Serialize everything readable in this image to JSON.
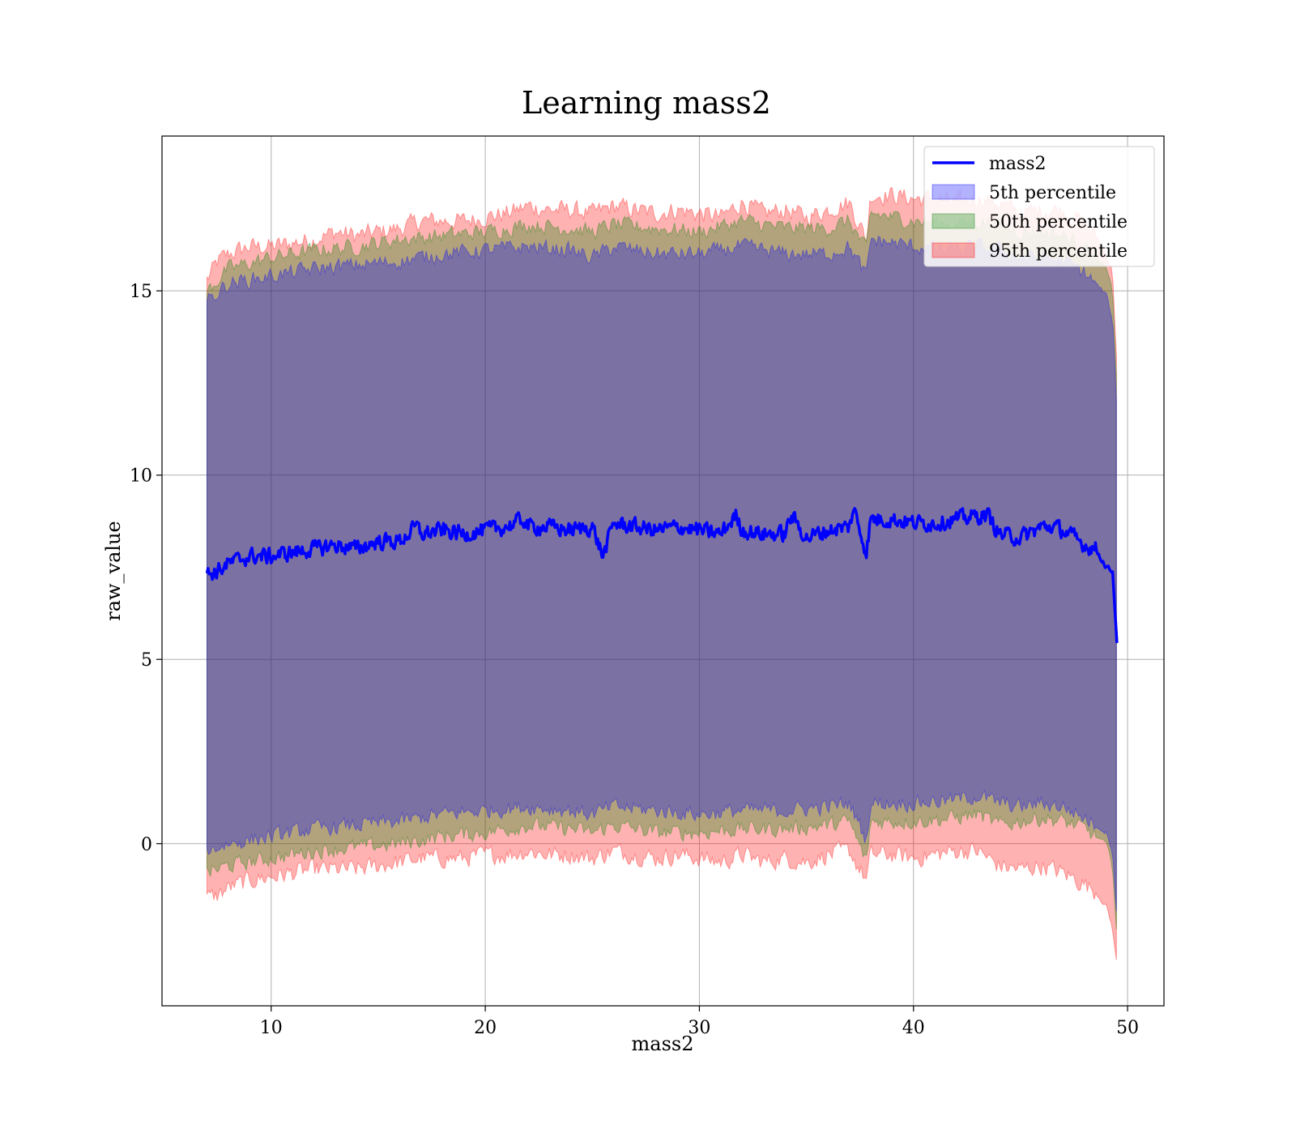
{
  "chart_data": {
    "type": "area",
    "title": "Learning mass2",
    "xlabel": "mass2",
    "ylabel": "raw_value",
    "xlim": [
      4.9,
      51.7
    ],
    "ylim": [
      -4.4,
      19.2
    ],
    "x_ticks": [
      10,
      20,
      30,
      40,
      50
    ],
    "y_ticks": [
      0,
      5,
      10,
      15
    ],
    "grid": true,
    "legend_position": "top-right",
    "colors": {
      "line": "#0000ff",
      "band_5th": "#0000ff",
      "band_50th": "#008000",
      "band_95th": "#ff0000",
      "band_overlap": "#a07077",
      "grid": "#b0b0b0",
      "axes": "#000000"
    },
    "legend": [
      {
        "label": "mass2",
        "kind": "line",
        "color": "#0000ff"
      },
      {
        "label": "5th percentile",
        "kind": "band",
        "color": "#0000ff"
      },
      {
        "label": "50th percentile",
        "kind": "band",
        "color": "#008000"
      },
      {
        "label": "95th percentile",
        "kind": "band",
        "color": "#ff0000"
      }
    ],
    "series": [
      {
        "name": "mass2",
        "x": [
          7.0,
          7.5,
          8.0,
          9.0,
          10.0,
          11.0,
          12.0,
          13.0,
          14.0,
          15.0,
          16.0,
          16.8,
          17.0,
          18.0,
          19.0,
          20.0,
          21.0,
          21.8,
          22.0,
          23.0,
          24.0,
          25.0,
          25.5,
          26.0,
          27.0,
          28.0,
          29.0,
          30.0,
          31.0,
          31.7,
          32.0,
          33.0,
          34.0,
          34.3,
          35.0,
          36.0,
          37.0,
          37.2,
          37.8,
          38.0,
          39.0,
          40.0,
          41.0,
          42.0,
          43.0,
          43.5,
          44.0,
          45.0,
          46.0,
          46.5,
          47.0,
          48.0,
          48.5,
          49.0,
          49.3,
          49.5
        ],
        "y": [
          7.3,
          7.4,
          7.6,
          7.8,
          7.8,
          7.9,
          8.0,
          8.1,
          8.0,
          8.2,
          8.2,
          8.6,
          8.4,
          8.5,
          8.4,
          8.5,
          8.6,
          8.8,
          8.6,
          8.6,
          8.5,
          8.6,
          7.8,
          8.7,
          8.6,
          8.5,
          8.6,
          8.5,
          8.4,
          8.9,
          8.5,
          8.4,
          8.4,
          8.9,
          8.3,
          8.5,
          8.6,
          9.1,
          7.9,
          8.8,
          8.8,
          8.7,
          8.7,
          8.8,
          8.9,
          8.9,
          8.4,
          8.3,
          8.6,
          8.6,
          8.5,
          8.1,
          8.0,
          7.5,
          7.4,
          5.5
        ]
      },
      {
        "name": "95th percentile",
        "x": [
          7.0,
          7.5,
          8.0,
          9.0,
          10.0,
          11.0,
          12.0,
          13.0,
          14.0,
          15.0,
          16.0,
          17.0,
          18.0,
          19.0,
          20.0,
          21.0,
          22.0,
          23.0,
          24.0,
          25.0,
          26.0,
          27.0,
          28.0,
          29.0,
          30.0,
          31.0,
          32.0,
          33.0,
          34.0,
          35.0,
          36.0,
          37.0,
          37.8,
          38.0,
          39.0,
          40.0,
          41.0,
          42.0,
          43.0,
          44.0,
          45.0,
          46.0,
          47.0,
          48.0,
          48.5,
          49.0,
          49.3,
          49.5
        ],
        "upper": [
          15.3,
          15.8,
          16.0,
          16.2,
          16.2,
          16.3,
          16.4,
          16.6,
          16.5,
          16.6,
          16.7,
          16.9,
          16.9,
          16.9,
          17.0,
          17.1,
          17.3,
          17.2,
          17.2,
          17.1,
          17.3,
          17.2,
          17.1,
          17.2,
          17.1,
          17.0,
          17.4,
          17.1,
          17.2,
          17.0,
          17.2,
          17.4,
          16.4,
          17.6,
          17.6,
          17.5,
          17.5,
          17.4,
          17.5,
          17.4,
          17.1,
          17.2,
          17.2,
          16.8,
          16.5,
          16.0,
          15.5,
          13.0
        ],
        "lower": [
          -1.5,
          -1.4,
          -1.2,
          -1.0,
          -0.9,
          -0.8,
          -0.7,
          -0.7,
          -0.7,
          -0.6,
          -0.5,
          -0.4,
          -0.4,
          -0.4,
          -0.3,
          -0.3,
          -0.2,
          -0.3,
          -0.3,
          -0.4,
          -0.2,
          -0.3,
          -0.4,
          -0.3,
          -0.4,
          -0.5,
          -0.3,
          -0.5,
          -0.4,
          -0.5,
          -0.3,
          -0.2,
          -1.0,
          -0.3,
          -0.3,
          -0.4,
          -0.3,
          -0.2,
          -0.2,
          -0.6,
          -0.7,
          -0.6,
          -0.8,
          -1.1,
          -1.3,
          -1.7,
          -2.3,
          -3.3
        ]
      },
      {
        "name": "50th percentile",
        "x": [
          7.0,
          8.0,
          10.0,
          12.0,
          14.0,
          16.0,
          18.0,
          20.0,
          22.0,
          24.0,
          25.0,
          26.0,
          28.0,
          30.0,
          32.0,
          34.0,
          36.0,
          37.0,
          37.8,
          38.0,
          40.0,
          42.0,
          43.0,
          44.0,
          45.0,
          46.0,
          47.0,
          48.0,
          49.0,
          49.3,
          49.5
        ],
        "upper": [
          15.0,
          15.6,
          15.9,
          16.1,
          16.2,
          16.4,
          16.5,
          16.6,
          16.8,
          16.7,
          16.6,
          16.8,
          16.7,
          16.6,
          16.9,
          16.7,
          16.7,
          16.9,
          16.1,
          17.1,
          16.9,
          16.8,
          16.9,
          16.8,
          16.6,
          16.6,
          16.5,
          16.2,
          15.6,
          15.0,
          12.5
        ],
        "lower": [
          -0.8,
          -0.6,
          -0.4,
          -0.2,
          -0.1,
          0.0,
          0.2,
          0.3,
          0.5,
          0.4,
          0.3,
          0.5,
          0.3,
          0.3,
          0.4,
          0.4,
          0.5,
          0.6,
          -0.5,
          0.6,
          0.6,
          0.7,
          0.8,
          0.5,
          0.6,
          0.7,
          0.6,
          0.4,
          0.0,
          -0.6,
          -2.5
        ]
      },
      {
        "name": "5th percentile",
        "x": [
          7.0,
          8.0,
          10.0,
          12.0,
          14.0,
          16.0,
          18.0,
          20.0,
          22.0,
          24.0,
          25.0,
          26.0,
          28.0,
          30.0,
          32.0,
          34.0,
          36.0,
          37.0,
          37.8,
          38.0,
          40.0,
          42.0,
          43.0,
          44.0,
          45.0,
          46.0,
          47.0,
          48.0,
          49.0,
          49.3,
          49.5
        ],
        "upper": [
          14.7,
          15.2,
          15.4,
          15.6,
          15.7,
          15.8,
          16.0,
          16.1,
          16.2,
          16.1,
          15.9,
          16.2,
          16.0,
          16.0,
          16.2,
          16.0,
          16.0,
          16.2,
          15.4,
          16.4,
          16.2,
          16.1,
          16.2,
          16.1,
          15.9,
          15.9,
          15.8,
          15.5,
          14.9,
          14.2,
          11.8
        ],
        "lower": [
          -0.2,
          0.0,
          0.2,
          0.4,
          0.5,
          0.6,
          0.8,
          0.9,
          1.0,
          0.9,
          0.8,
          1.0,
          0.9,
          0.8,
          0.9,
          0.9,
          1.0,
          1.1,
          0.1,
          1.1,
          1.1,
          1.2,
          1.3,
          1.1,
          1.0,
          1.1,
          1.0,
          0.7,
          0.3,
          -0.2,
          -2.0
        ]
      }
    ]
  }
}
